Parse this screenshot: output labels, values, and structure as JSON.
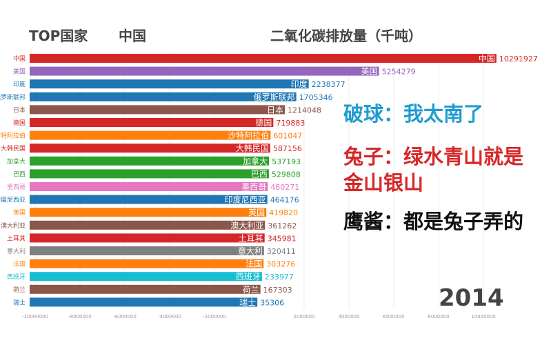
{
  "header": {
    "top_label": "TOP国家",
    "top_country": "中国",
    "metric_title": "二氧化碳排放量（千吨）"
  },
  "annotations": [
    {
      "text": "破球：我太南了",
      "color": "#1f9bd1"
    },
    {
      "text": "兔子：绿水青山就是",
      "color": "#d62728"
    },
    {
      "text": "金山银山",
      "color": "#d62728"
    },
    {
      "text": "鹰酱：都是兔子弄的",
      "color": "#111111"
    }
  ],
  "year": "2014",
  "chart_data": {
    "type": "bar",
    "orientation": "horizontal",
    "title": "二氧化碳排放量（千吨）",
    "categories": [
      "中国",
      "美国",
      "印度",
      "俄罗斯联邦",
      "日本",
      "德国",
      "沙特阿拉伯",
      "大韩民国",
      "加拿大",
      "巴西",
      "墨西哥",
      "印度尼西亚",
      "英国",
      "澳大利亚",
      "土耳其",
      "意大利",
      "法国",
      "西班牙",
      "荷兰",
      "瑞士"
    ],
    "values": [
      10291927,
      5254279,
      2238377,
      1705346,
      1214048,
      719883,
      601047,
      587156,
      537193,
      529808,
      480271,
      464176,
      419820,
      361262,
      345981,
      320411,
      303276,
      233977,
      167303,
      35306
    ],
    "colors": [
      "#d62728",
      "#9467bd",
      "#1f77b4",
      "#1f77b4",
      "#8c564b",
      "#d62728",
      "#ff7f0e",
      "#d62728",
      "#2ca02c",
      "#2ca02c",
      "#e377c2",
      "#1f77b4",
      "#ff7f0e",
      "#8c564b",
      "#d62728",
      "#7f7f7f",
      "#ff7f0e",
      "#17becf",
      "#8c564b",
      "#1f77b4"
    ],
    "xticks": [
      -10000000,
      -8000000,
      -6000000,
      -4000000,
      -2000000,
      2000000,
      4000000,
      6000000,
      8000000,
      10000000
    ],
    "grid": true,
    "year": "2014"
  }
}
